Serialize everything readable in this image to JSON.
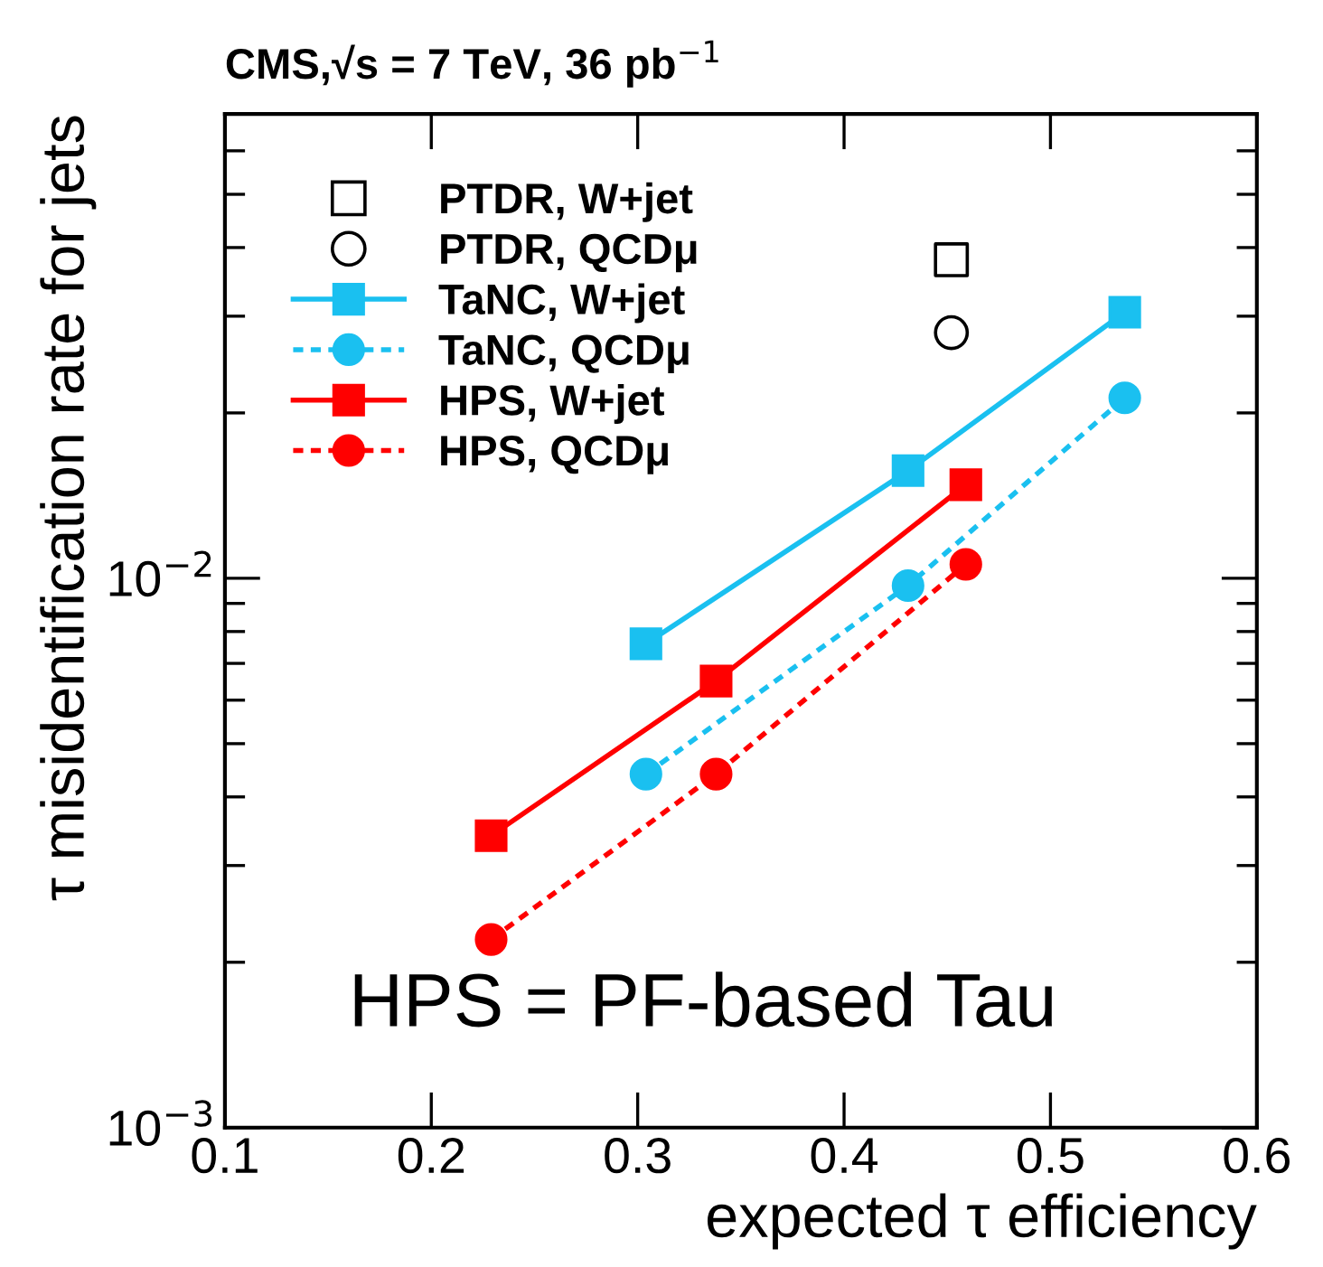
{
  "chart_data": {
    "type": "line",
    "title": "CMS,√s = 7 TeV, 36 pb$^{−1}$",
    "xlabel": "expected τ efficiency",
    "ylabel": "τ misidentification rate for jets",
    "log": "y",
    "xlim": [
      0.1,
      0.6
    ],
    "ylim": [
      0.001,
      0.07
    ],
    "xticks": [
      0.1,
      0.2,
      0.3,
      0.4,
      0.5,
      0.6
    ],
    "yticks": [
      {
        "value": 0.001,
        "label": "10$^{−3}$"
      },
      {
        "value": 0.01,
        "label": "10$^{−2}$"
      }
    ],
    "grid": false,
    "legend": "top left",
    "annotations": [
      "HPS = PF-based Tau"
    ],
    "series": [
      {
        "name": "PTDR, W+jet",
        "type": "scatter",
        "marker": "square",
        "color": "#000000",
        "x": [
          0.452
        ],
        "values": [
          0.038
        ]
      },
      {
        "name": "PTDR, QCDμ",
        "type": "scatter",
        "marker": "circle",
        "color": "#000000",
        "x": [
          0.452
        ],
        "values": [
          0.028
        ]
      },
      {
        "name": "TaNC, W+jet",
        "type": "line",
        "marker": "square",
        "line_style": "solid",
        "color": "#1ac0f0",
        "x": [
          0.304,
          0.431,
          0.536
        ],
        "values": [
          0.0076,
          0.0157,
          0.0305
        ]
      },
      {
        "name": "TaNC, QCDμ",
        "type": "line",
        "marker": "circle",
        "line_style": "dotted",
        "color": "#1ac0f0",
        "x": [
          0.304,
          0.431,
          0.536
        ],
        "values": [
          0.0044,
          0.0097,
          0.0213
        ]
      },
      {
        "name": "HPS, W+jet",
        "type": "line",
        "marker": "square",
        "line_style": "solid",
        "color": "#ff0000",
        "x": [
          0.229,
          0.338,
          0.459
        ],
        "values": [
          0.0034,
          0.0065,
          0.0148
        ]
      },
      {
        "name": "HPS, QCDμ",
        "type": "line",
        "marker": "circle",
        "line_style": "dotted",
        "color": "#ff0000",
        "x": [
          0.229,
          0.338,
          0.459
        ],
        "values": [
          0.0022,
          0.0044,
          0.0106
        ]
      }
    ]
  }
}
